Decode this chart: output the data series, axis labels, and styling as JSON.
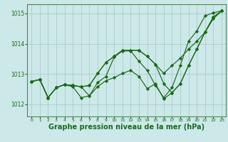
{
  "bg_color": "#cce8e8",
  "grid_color": "#aacccc",
  "line_color": "#1a6b1a",
  "marker_color": "#1a6b1a",
  "xlabel": "Graphe pression niveau de la mer (hPa)",
  "xlabel_fontsize": 7.0,
  "xlim": [
    -0.5,
    23.5
  ],
  "ylim": [
    1011.6,
    1015.3
  ],
  "yticks": [
    1012,
    1013,
    1014,
    1015
  ],
  "xticks": [
    0,
    1,
    2,
    3,
    4,
    5,
    6,
    7,
    8,
    9,
    10,
    11,
    12,
    13,
    14,
    15,
    16,
    17,
    18,
    19,
    20,
    21,
    22,
    23
  ],
  "series": [
    [
      1012.75,
      1012.82,
      1012.22,
      1012.55,
      1012.65,
      1012.58,
      1012.22,
      1012.28,
      1012.72,
      1012.92,
      1013.56,
      1013.76,
      1013.76,
      1013.42,
      1013.12,
      1012.62,
      1012.22,
      1012.55,
      1013.28,
      1014.08,
      1014.42,
      1014.92,
      1015.02,
      1015.08
    ],
    [
      1012.75,
      1012.82,
      1012.22,
      1012.55,
      1012.65,
      1012.62,
      1012.58,
      1012.62,
      1013.02,
      1013.38,
      1013.58,
      1013.78,
      1013.78,
      1013.78,
      1013.58,
      1013.32,
      1013.02,
      1013.28,
      1013.52,
      1013.82,
      1014.08,
      1014.38,
      1014.82,
      1015.08
    ],
    [
      1012.75,
      1012.82,
      1012.22,
      1012.55,
      1012.65,
      1012.62,
      1012.58,
      1012.62,
      1013.02,
      1013.38,
      1013.58,
      1013.78,
      1013.78,
      1013.78,
      1013.58,
      1013.32,
      1012.68,
      1012.38,
      1012.68,
      1013.28,
      1013.82,
      1014.38,
      1014.88,
      1015.08
    ],
    [
      1012.75,
      1012.82,
      1012.22,
      1012.55,
      1012.65,
      1012.62,
      1012.58,
      1012.28,
      1012.58,
      1012.78,
      1012.88,
      1013.02,
      1013.12,
      1012.92,
      1012.52,
      1012.68,
      1012.18,
      1012.38,
      1012.68,
      1013.28,
      1013.82,
      1014.38,
      1014.88,
      1015.08
    ]
  ]
}
